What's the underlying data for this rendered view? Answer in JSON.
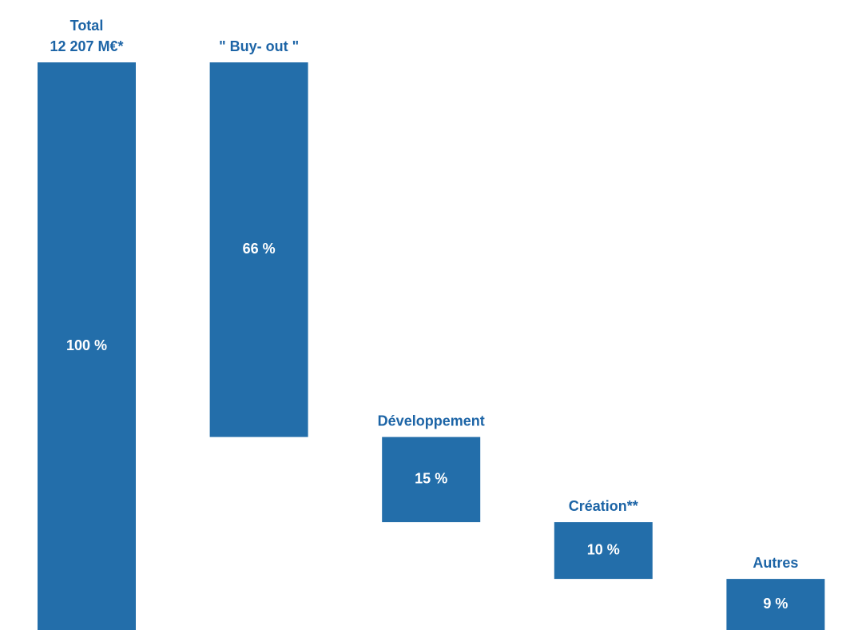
{
  "chart_data": {
    "type": "bar",
    "subtype": "waterfall",
    "colors": {
      "bar": "#236EAA",
      "header_text": "#1C64A6",
      "value_text": "#ffffff"
    },
    "categories": [
      [
        "Total",
        "12 207 M€*"
      ],
      [
        "\" Buy- out \""
      ],
      [
        "Développement"
      ],
      [
        "Création**"
      ],
      [
        "Autres"
      ]
    ],
    "values": [
      100,
      66,
      15,
      10,
      9
    ],
    "value_labels": [
      "100 %",
      "66 %",
      "15 %",
      "10 %",
      "9 %"
    ],
    "unit": "%",
    "total_label": "12 207 M€*",
    "ylim": [
      0,
      100
    ],
    "grid": false,
    "legend": "none"
  }
}
